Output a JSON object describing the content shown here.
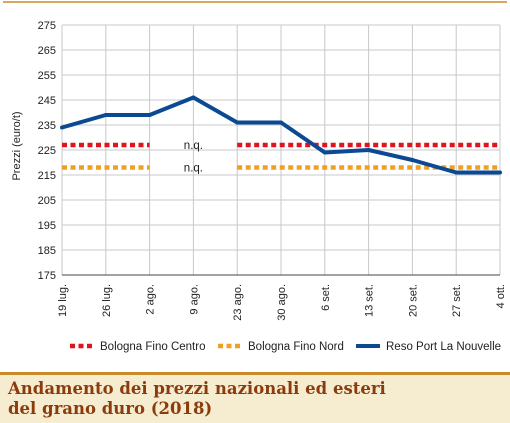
{
  "chart_data": {
    "type": "line",
    "ylabel": "Prezzi (euro/t)",
    "ylim": [
      175,
      275
    ],
    "yticks": [
      175,
      185,
      195,
      205,
      215,
      225,
      235,
      245,
      255,
      265,
      275
    ],
    "categories": [
      "19 lug.",
      "26 lug.",
      "2 ago.",
      "9 ago.",
      "23 ago.",
      "30 ago.",
      "6 set.",
      "13 set.",
      "20 set.",
      "27 set.",
      "4 ott."
    ],
    "grid": true,
    "legend_position": "bottom",
    "series": [
      {
        "name": "Bologna Fino Centro",
        "style": "dotted",
        "color": "#e0141e",
        "values": [
          227,
          227,
          227,
          null,
          227,
          227,
          227,
          227,
          227,
          227,
          227
        ]
      },
      {
        "name": "Bologna Fino Nord",
        "style": "dotted",
        "color": "#f0a020",
        "values": [
          218,
          218,
          218,
          null,
          218,
          218,
          218,
          218,
          218,
          218,
          218
        ]
      },
      {
        "name": "Reso Port La Nouvelle",
        "style": "solid",
        "color": "#0b4a93",
        "values": [
          234,
          239,
          239,
          246,
          236,
          236,
          224,
          225,
          221,
          216,
          216
        ]
      }
    ],
    "annotations": [
      {
        "text": "n.q.",
        "x": "9 ago.",
        "y": 227
      },
      {
        "text": "n.q.",
        "x": "9 ago.",
        "y": 218
      }
    ]
  },
  "caption": {
    "line1": "Andamento dei prezzi nazionali ed esteri",
    "line2": "del grano duro (2018)"
  },
  "colors": {
    "accent": "#c98a2a",
    "grid": "#c8c8c8",
    "caption_bg": "#f6ecd0",
    "caption_text": "#8b3b0d"
  }
}
